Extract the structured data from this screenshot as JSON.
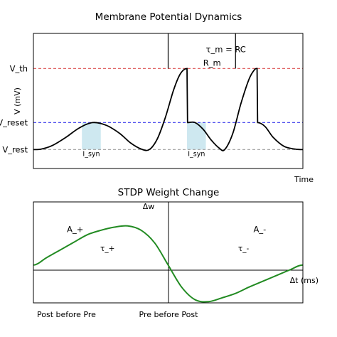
{
  "chart_data": [
    {
      "type": "line",
      "title": "Membrane Potential Dynamics",
      "xlabel": "Time",
      "ylabel": "V (mV)",
      "y_levels": [
        {
          "name": "V_th",
          "value": 3.0,
          "color": "#e06666"
        },
        {
          "name": "V_reset",
          "value": 1.0,
          "color": "#5555ee"
        },
        {
          "name": "V_rest",
          "value": 0.0,
          "color": "#aaaaaa"
        }
      ],
      "ylim": [
        -0.7,
        4.3
      ],
      "xlim": [
        0,
        10
      ],
      "trace": {
        "color": "#000000",
        "points": [
          [
            0.0,
            0.0
          ],
          [
            0.3,
            0.02
          ],
          [
            0.7,
            0.15
          ],
          [
            1.2,
            0.45
          ],
          [
            1.7,
            0.8
          ],
          [
            2.2,
            1.0
          ],
          [
            2.7,
            0.9
          ],
          [
            3.2,
            0.6
          ],
          [
            3.6,
            0.25
          ],
          [
            4.0,
            0.02
          ],
          [
            4.3,
            0.0
          ],
          [
            4.6,
            0.4
          ],
          [
            4.9,
            1.2
          ],
          [
            5.2,
            2.2
          ],
          [
            5.45,
            2.8
          ],
          [
            5.7,
            3.0
          ],
          [
            5.72,
            1.0
          ],
          [
            6.0,
            1.0
          ],
          [
            6.3,
            0.75
          ],
          [
            6.6,
            0.35
          ],
          [
            6.9,
            0.05
          ],
          [
            7.1,
            0.0
          ],
          [
            7.4,
            0.6
          ],
          [
            7.7,
            1.7
          ],
          [
            8.0,
            2.6
          ],
          [
            8.2,
            2.95
          ],
          [
            8.3,
            3.0
          ],
          [
            8.32,
            1.0
          ],
          [
            8.6,
            0.85
          ],
          [
            8.9,
            0.45
          ],
          [
            9.3,
            0.12
          ],
          [
            9.7,
            0.02
          ],
          [
            10.0,
            0.0
          ]
        ]
      },
      "spike_markers_x": [
        5.0,
        7.5
      ],
      "shaded_regions": [
        {
          "x": [
            1.8,
            2.5
          ],
          "label": "I_syn",
          "color": "#add8e6"
        },
        {
          "x": [
            5.7,
            6.4
          ],
          "label": "I_syn",
          "color": "#add8e6"
        }
      ],
      "annotations": [
        {
          "text": "τ_m = RC",
          "x": 6.4,
          "y": 3.6
        },
        {
          "text": "R_m",
          "x": 6.3,
          "y": 3.1
        }
      ]
    },
    {
      "type": "line",
      "title": "STDP Weight Change",
      "xlabel": "Δt (ms)",
      "ylabel": "Δw",
      "xlim": [
        -1,
        1
      ],
      "ylim": [
        -0.6,
        1.0
      ],
      "series": [
        {
          "color": "#228b22",
          "points": [
            [
              -1.0,
              0.0
            ],
            [
              -0.9,
              0.12
            ],
            [
              -0.8,
              0.24
            ],
            [
              -0.7,
              0.36
            ],
            [
              -0.6,
              0.48
            ],
            [
              -0.5,
              0.55
            ],
            [
              -0.4,
              0.6
            ],
            [
              -0.3,
              0.62
            ],
            [
              -0.2,
              0.55
            ],
            [
              -0.1,
              0.35
            ],
            [
              0.0,
              0.0
            ],
            [
              0.1,
              -0.35
            ],
            [
              0.2,
              -0.55
            ],
            [
              0.3,
              -0.58
            ],
            [
              0.4,
              -0.52
            ],
            [
              0.5,
              -0.45
            ],
            [
              0.6,
              -0.35
            ],
            [
              0.7,
              -0.26
            ],
            [
              0.8,
              -0.17
            ],
            [
              0.9,
              -0.08
            ],
            [
              1.0,
              0.0
            ]
          ]
        }
      ],
      "annotations": [
        {
          "text": "A_+",
          "x": -0.69,
          "y": 0.52
        },
        {
          "text": "τ_+",
          "x": -0.45,
          "y": 0.22
        },
        {
          "text": "A_-",
          "x": 0.68,
          "y": 0.52
        },
        {
          "text": "τ_-",
          "x": 0.56,
          "y": 0.22
        }
      ],
      "bottom_labels": [
        "Post before Pre",
        "Pre before Post"
      ]
    }
  ]
}
